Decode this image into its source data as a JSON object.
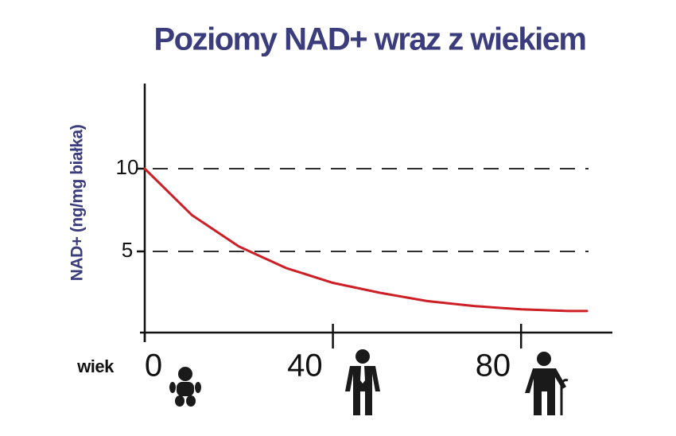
{
  "chart_data": {
    "type": "line",
    "title": "Poziomy NAD+ wraz z wiekiem",
    "y_label": "NAD+ (ng/mg białka)",
    "x_label": "wiek",
    "x": [
      0,
      10,
      20,
      30,
      40,
      50,
      60,
      70,
      80,
      90,
      94
    ],
    "values": [
      10,
      7.2,
      5.3,
      4.0,
      3.1,
      2.5,
      2.0,
      1.7,
      1.5,
      1.4,
      1.4
    ],
    "color": "#cc1f26",
    "xlim": [
      0,
      100
    ],
    "xticks": [
      0,
      40,
      80
    ],
    "ylim": [
      0,
      15
    ],
    "yticks": [
      5,
      10
    ],
    "grid": true
  }
}
